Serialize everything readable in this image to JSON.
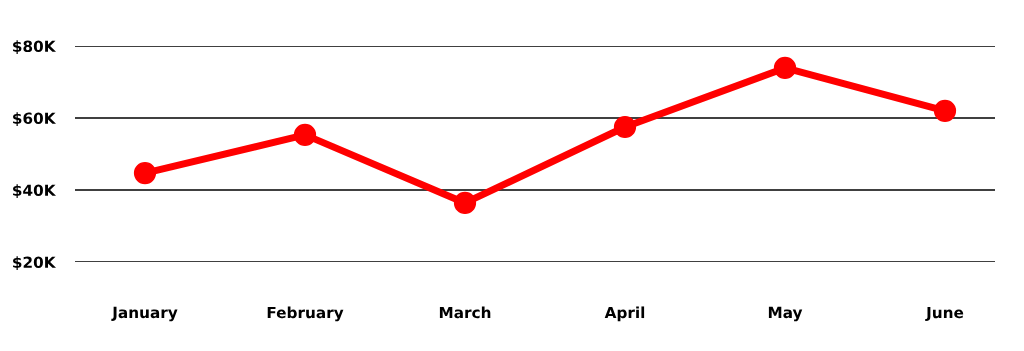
{
  "chart_data": {
    "type": "line",
    "categories": [
      "January",
      "February",
      "March",
      "April",
      "May",
      "June"
    ],
    "series": [
      {
        "color": "#ff0000",
        "values": [
          44.7,
          55.3,
          36.4,
          57.5,
          73.9,
          62
        ]
      }
    ],
    "ylim": [
      20,
      80
    ],
    "yticks": [
      {
        "value": 20,
        "label": "$20K"
      },
      {
        "value": 40,
        "label": "$40K"
      },
      {
        "value": 60,
        "label": "$60K"
      },
      {
        "value": 80,
        "label": "$80K"
      }
    ],
    "grid": "y",
    "marker": "circle",
    "line_style": "solid",
    "legend": false
  }
}
